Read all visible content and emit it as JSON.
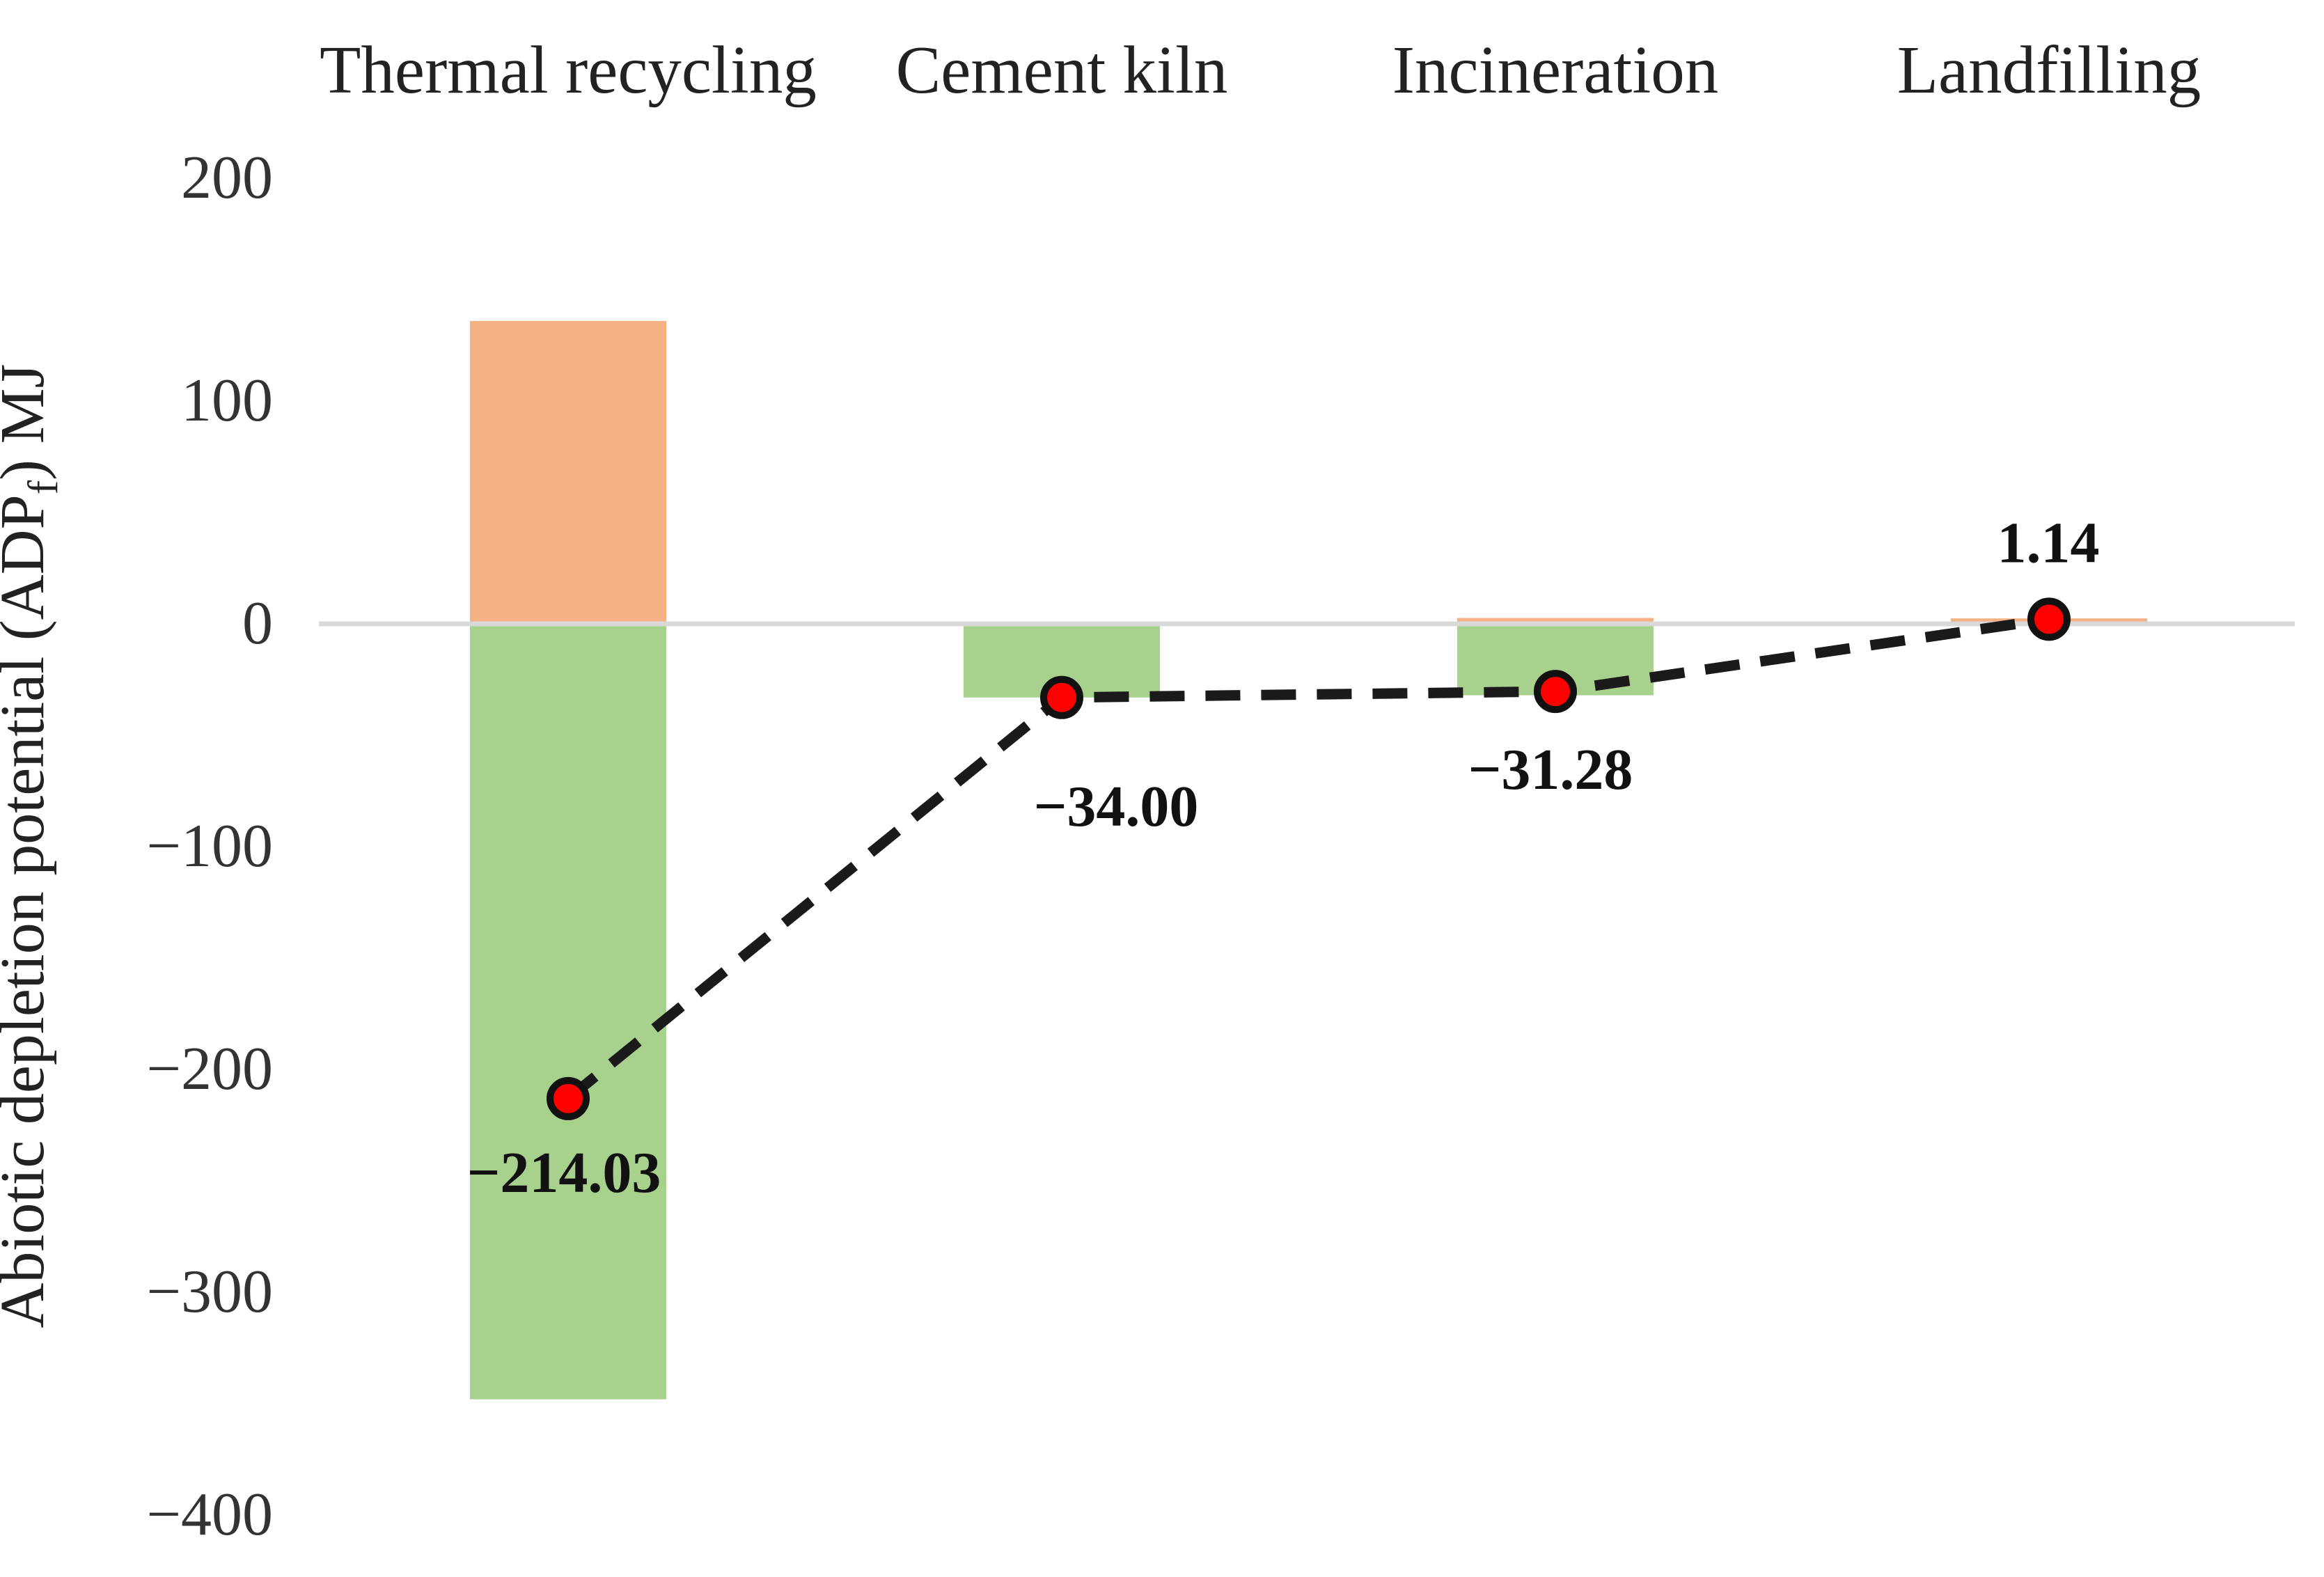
{
  "chart_data": {
    "type": "bar",
    "subtype": "stacked-bars-with-net-line-overlay",
    "categories": [
      "Thermal recycling",
      "Cement kiln",
      "Incineration",
      "Landfilling"
    ],
    "series": [
      {
        "name": "positive-contribution",
        "color": "#F4B183",
        "values": [
          135,
          0,
          1.7,
          1.5
        ]
      },
      {
        "name": "negative-contribution",
        "color": "#A9D18E",
        "values": [
          -349,
          -34,
          -33,
          0
        ]
      }
    ],
    "net_line": {
      "name": "net-total",
      "values": [
        -214.03,
        -34.0,
        -31.28,
        1.14
      ],
      "labels": [
        "−214.03",
        "−34.00",
        "−31.28",
        "1.14"
      ],
      "style": "dashed",
      "line_color": "#1A1A1A",
      "marker_color": "#FF0000",
      "marker_outline": "#111111"
    },
    "ylabel": {
      "prefix": "Abiotic depletion potential (ADP",
      "subscript": "f",
      "suffix": ") MJ"
    },
    "yticks": [
      {
        "value": 200,
        "label": "200"
      },
      {
        "value": 100,
        "label": "100"
      },
      {
        "value": 0,
        "label": "0"
      },
      {
        "value": -100,
        "label": "−100"
      },
      {
        "value": -200,
        "label": "−200"
      },
      {
        "value": -300,
        "label": "−300"
      },
      {
        "value": -400,
        "label": "−400"
      }
    ],
    "ylim": [
      -400,
      200
    ],
    "grid": "zero-line-only",
    "zero_line_color": "#D9D9D9",
    "background": "#FFFFFF",
    "tick_text_color": "#333333",
    "category_text_color": "#222222",
    "data_label_color": "#111111",
    "legend": "none"
  }
}
